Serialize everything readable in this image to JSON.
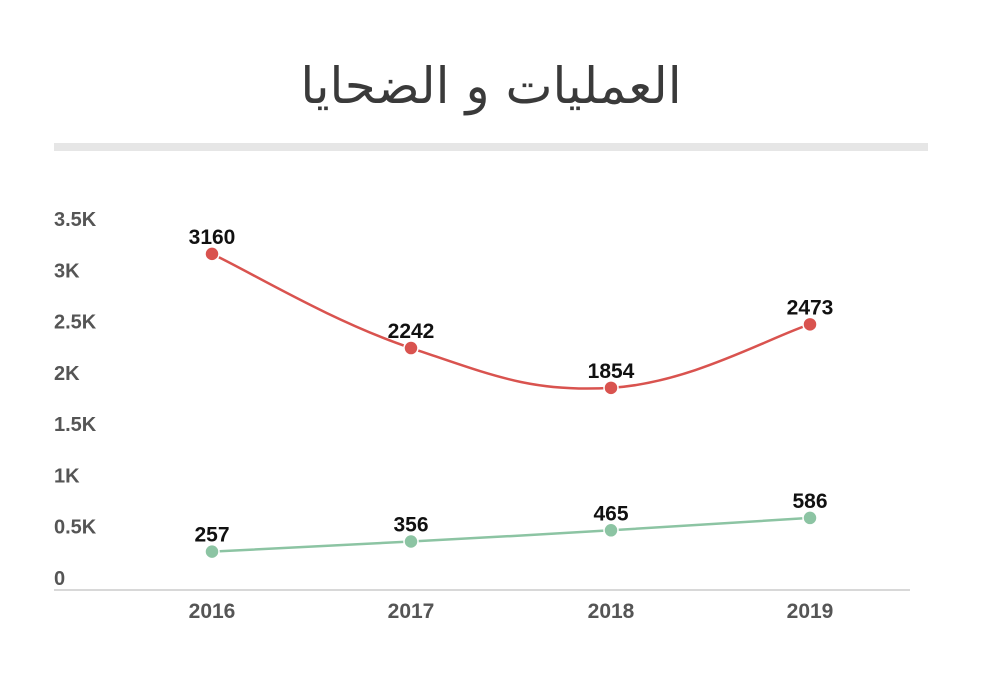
{
  "chart_data": {
    "type": "line",
    "title": "العمليات و الضحايا",
    "categories": [
      "2016",
      "2017",
      "2018",
      "2019"
    ],
    "yticks": [
      "0",
      "0.5K",
      "1K",
      "1.5K",
      "2K",
      "2.5K",
      "3K",
      "3.5K"
    ],
    "ylim": [
      0,
      3500
    ],
    "grid": false,
    "legend": "none",
    "series": [
      {
        "values": [
          3160,
          2242,
          1854,
          2473
        ],
        "color": "#d9534f"
      },
      {
        "values": [
          257,
          356,
          465,
          586
        ],
        "color": "#8cc4a3"
      }
    ]
  }
}
